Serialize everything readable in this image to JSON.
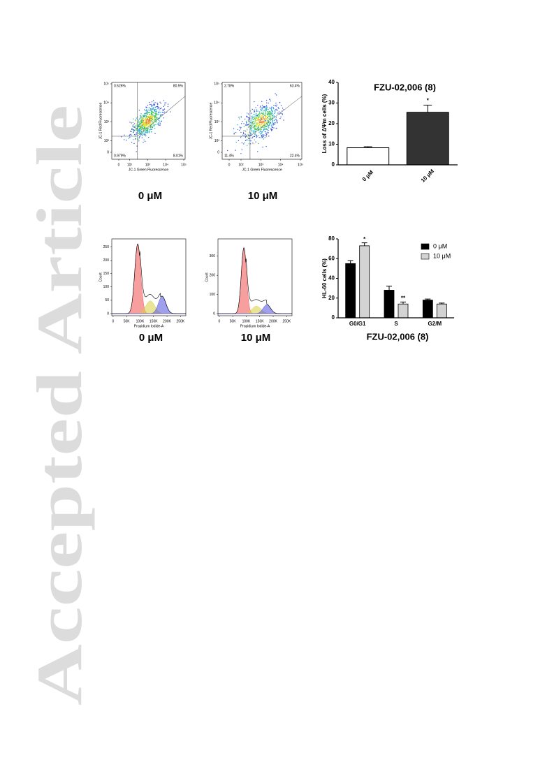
{
  "watermark": "Accepted Article",
  "chart_data": [
    {
      "type": "flow-scatter",
      "caption": "0 μM",
      "xlabel": "JC-1 Green Fluorescence",
      "ylabel": "JC-1 Red Fluorescence",
      "quadrant_labels": [
        "0.526%",
        "80.5%",
        "0.979%",
        "8.01%"
      ],
      "xlim": [
        0,
        100000
      ],
      "ylim": [
        0,
        100000
      ],
      "log_scale": true,
      "xticks": [
        0,
        {
          "value": 100,
          "label": "10²"
        },
        {
          "value": 1000,
          "label": "10³"
        },
        {
          "value": 10000,
          "label": "10⁴"
        },
        {
          "value": 100000,
          "label": "10⁵"
        }
      ],
      "yticks": [
        0,
        {
          "value": 100,
          "label": "10²"
        },
        {
          "value": 1000,
          "label": "10³"
        },
        {
          "value": 10000,
          "label": "10⁴"
        },
        {
          "value": 100000,
          "label": "10⁵"
        }
      ]
    },
    {
      "type": "flow-scatter",
      "caption": "10 μM",
      "xlabel": "JC-1 Green Fluorescence",
      "ylabel": "JC-1 Red Fluorescence",
      "quadrant_labels": [
        "2.78%",
        "63.4%",
        "11.4%",
        "22.4%"
      ],
      "xlim": [
        0,
        100000
      ],
      "ylim": [
        0,
        100000
      ],
      "log_scale": true,
      "xticks": [
        0,
        {
          "value": 100,
          "label": "10²"
        },
        {
          "value": 1000,
          "label": "10³"
        },
        {
          "value": 10000,
          "label": "10⁴"
        },
        {
          "value": 100000,
          "label": "10⁵"
        }
      ],
      "yticks": [
        0,
        {
          "value": 100,
          "label": "10²"
        },
        {
          "value": 1000,
          "label": "10³"
        },
        {
          "value": 10000,
          "label": "10⁴"
        },
        {
          "value": 100000,
          "label": "10⁵"
        }
      ]
    },
    {
      "type": "bar",
      "title": "FZU-02,006 (8)",
      "ylabel": "Loss of ΔΨm cells (%)",
      "categories": [
        "0 μM",
        "10 μM"
      ],
      "values": [
        8.3,
        25.5
      ],
      "errors": [
        0.5,
        3.5
      ],
      "colors": [
        "#ffffff",
        "#333333"
      ],
      "ylim": [
        0,
        40
      ],
      "yticks": [
        0,
        10,
        20,
        30,
        40
      ],
      "annotations": [
        {
          "label": "*",
          "x": "10 μM"
        }
      ]
    },
    {
      "type": "flow-histogram",
      "caption": "0 μM",
      "xlabel": "Propidium Iodide-A",
      "ylabel": "Count",
      "xlim": [
        -5000,
        270000
      ],
      "ylim": [
        0,
        280
      ],
      "xticks": [
        0,
        {
          "value": 50000,
          "label": "50K"
        },
        {
          "value": 100000,
          "label": "100K"
        },
        {
          "value": 150000,
          "label": "150K"
        },
        {
          "value": 200000,
          "label": "200K"
        },
        {
          "value": 250000,
          "label": "250K"
        }
      ],
      "yticks": [
        0,
        50,
        100,
        150,
        200,
        250
      ]
    },
    {
      "type": "flow-histogram",
      "caption": "10 μM",
      "xlabel": "Propidium Iodide-A",
      "ylabel": "Count",
      "xlim": [
        -5000,
        270000
      ],
      "ylim": [
        0,
        390
      ],
      "xticks": [
        0,
        {
          "value": 50000,
          "label": "50K"
        },
        {
          "value": 100000,
          "label": "100K"
        },
        {
          "value": 150000,
          "label": "150K"
        },
        {
          "value": 200000,
          "label": "200K"
        },
        {
          "value": 250000,
          "label": "250K"
        }
      ],
      "yticks": [
        0,
        100,
        200,
        300
      ]
    },
    {
      "type": "grouped-bar",
      "xlabel": "FZU-02,006 (8)",
      "ylabel": "HL-60 cells (%)",
      "categories": [
        "G0/G1",
        "S",
        "G2/M"
      ],
      "series": [
        {
          "name": "0 μM",
          "color": "#000000",
          "values": [
            55,
            28,
            18
          ],
          "errors": [
            3,
            4,
            1
          ]
        },
        {
          "name": "10 μM",
          "color": "#d3d3d3",
          "values": [
            73,
            14,
            14
          ],
          "errors": [
            3,
            2,
            1
          ]
        }
      ],
      "ylim": [
        0,
        80
      ],
      "yticks": [
        0,
        20,
        40,
        60,
        80
      ],
      "legend": "top-right",
      "annotations": [
        {
          "label": "*",
          "x": "G0/G1",
          "series": "10 μM"
        },
        {
          "label": "**",
          "x": "S",
          "series": "10 μM"
        }
      ]
    }
  ]
}
